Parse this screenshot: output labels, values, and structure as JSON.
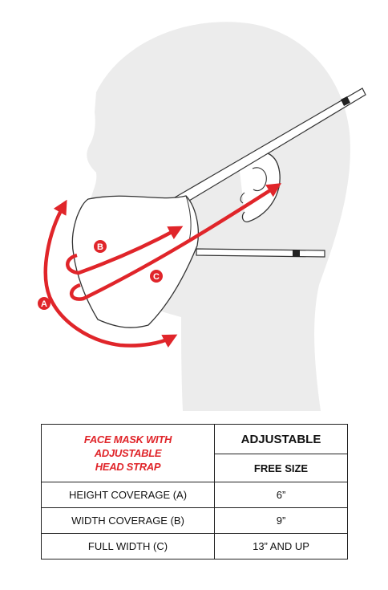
{
  "labels": {
    "a": "A",
    "b": "B",
    "c": "C"
  },
  "colors": {
    "arrow": "#e0252a",
    "silhouette": "#ececec",
    "outline": "#333333"
  },
  "table": {
    "title_lines": [
      "FACE MASK WITH",
      "ADJUSTABLE",
      "HEAD STRAP"
    ],
    "header_top": "ADJUSTABLE",
    "header_sub": "FREE SIZE",
    "rows": [
      {
        "label": "HEIGHT COVERAGE (A)",
        "value": "6”"
      },
      {
        "label": "WIDTH COVERAGE (B)",
        "value": "9”"
      },
      {
        "label": "FULL WIDTH (C)",
        "value": "13” AND UP"
      }
    ]
  }
}
